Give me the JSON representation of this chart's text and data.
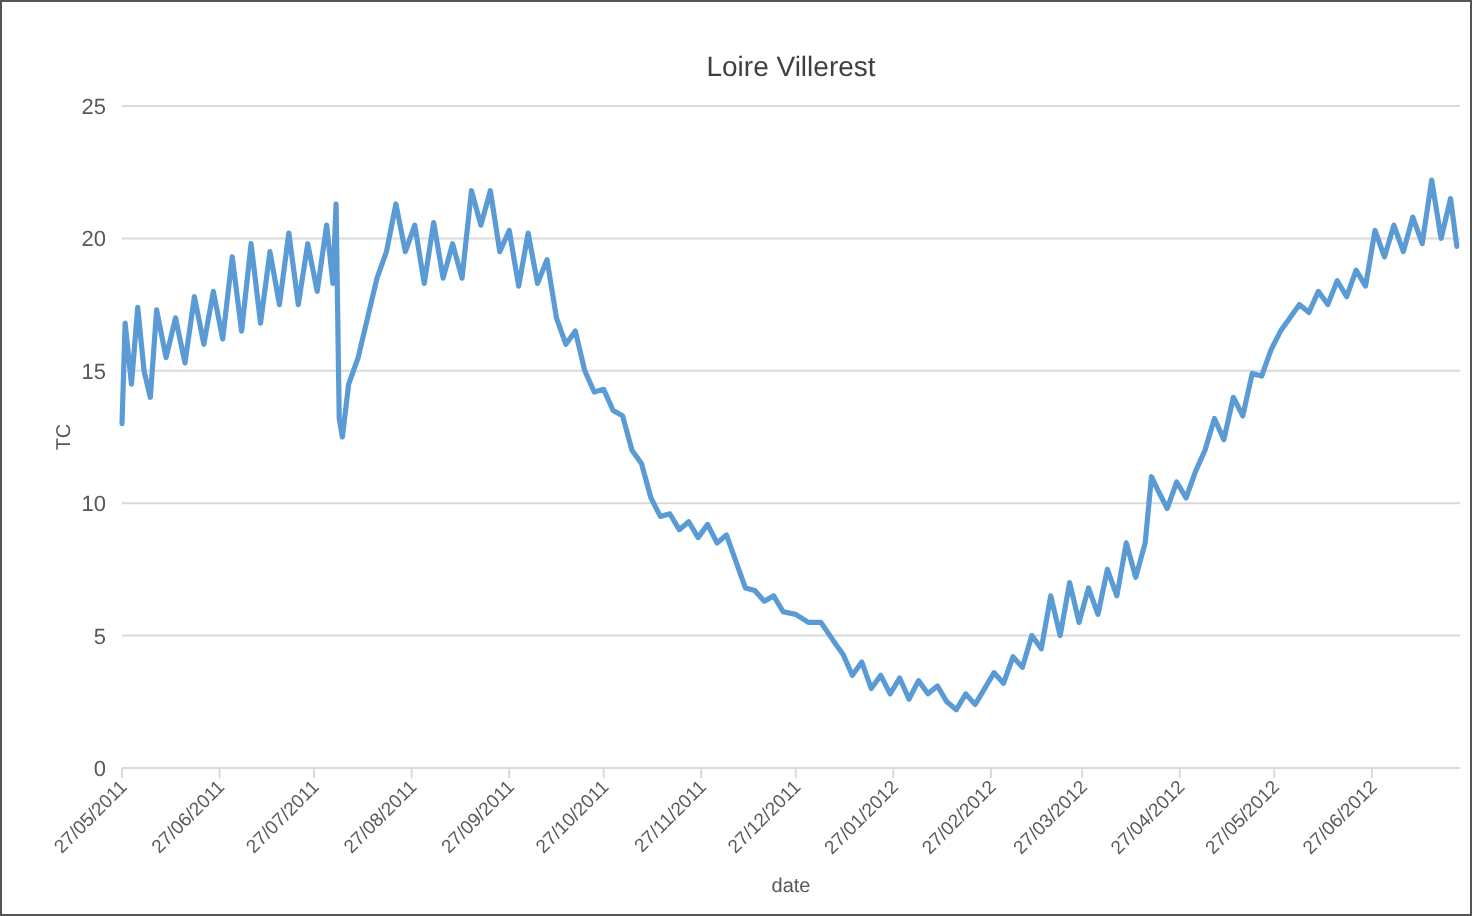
{
  "chart_data": {
    "type": "line",
    "title": "Loire Villerest",
    "xlabel": "date",
    "ylabel": "TC",
    "grid": "y",
    "marker": "none",
    "line_style": "solid",
    "xlim": [
      "2011-05-27",
      "2012-07-25"
    ],
    "xticks": [
      {
        "value": "2011-05-27",
        "label": "27/05/2011"
      },
      {
        "value": "2011-06-27",
        "label": "27/06/2011"
      },
      {
        "value": "2011-07-27",
        "label": "27/07/2011"
      },
      {
        "value": "2011-08-27",
        "label": "27/08/2011"
      },
      {
        "value": "2011-09-27",
        "label": "27/09/2011"
      },
      {
        "value": "2011-10-27",
        "label": "27/10/2011"
      },
      {
        "value": "2011-11-27",
        "label": "27/11/2011"
      },
      {
        "value": "2011-12-27",
        "label": "27/12/2011"
      },
      {
        "value": "2012-01-27",
        "label": "27/01/2012"
      },
      {
        "value": "2012-02-27",
        "label": "27/02/2012"
      },
      {
        "value": "2012-03-27",
        "label": "27/03/2012"
      },
      {
        "value": "2012-04-27",
        "label": "27/04/2012"
      },
      {
        "value": "2012-05-27",
        "label": "27/05/2012"
      },
      {
        "value": "2012-06-27",
        "label": "27/06/2012"
      }
    ],
    "ylim": [
      0,
      25
    ],
    "yticks": [
      0,
      5,
      10,
      15,
      20,
      25
    ],
    "x": [
      "2011-05-27",
      "2011-05-28",
      "2011-05-30",
      "2011-06-01",
      "2011-06-03",
      "2011-06-05",
      "2011-06-07",
      "2011-06-10",
      "2011-06-13",
      "2011-06-16",
      "2011-06-19",
      "2011-06-22",
      "2011-06-25",
      "2011-06-28",
      "2011-07-01",
      "2011-07-04",
      "2011-07-07",
      "2011-07-10",
      "2011-07-13",
      "2011-07-16",
      "2011-07-19",
      "2011-07-22",
      "2011-07-25",
      "2011-07-28",
      "2011-07-31",
      "2011-08-02",
      "2011-08-03",
      "2011-08-04",
      "2011-08-05",
      "2011-08-07",
      "2011-08-10",
      "2011-08-13",
      "2011-08-16",
      "2011-08-19",
      "2011-08-22",
      "2011-08-25",
      "2011-08-28",
      "2011-08-31",
      "2011-09-03",
      "2011-09-06",
      "2011-09-09",
      "2011-09-12",
      "2011-09-15",
      "2011-09-18",
      "2011-09-21",
      "2011-09-24",
      "2011-09-27",
      "2011-09-30",
      "2011-10-03",
      "2011-10-06",
      "2011-10-09",
      "2011-10-12",
      "2011-10-15",
      "2011-10-18",
      "2011-10-21",
      "2011-10-24",
      "2011-10-27",
      "2011-10-30",
      "2011-11-02",
      "2011-11-05",
      "2011-11-08",
      "2011-11-11",
      "2011-11-14",
      "2011-11-17",
      "2011-11-20",
      "2011-11-23",
      "2011-11-26",
      "2011-11-29",
      "2011-12-02",
      "2011-12-05",
      "2011-12-08",
      "2011-12-11",
      "2011-12-14",
      "2011-12-17",
      "2011-12-20",
      "2011-12-23",
      "2011-12-27",
      "2011-12-31",
      "2012-01-04",
      "2012-01-08",
      "2012-01-11",
      "2012-01-14",
      "2012-01-17",
      "2012-01-20",
      "2012-01-23",
      "2012-01-26",
      "2012-01-29",
      "2012-02-01",
      "2012-02-04",
      "2012-02-07",
      "2012-02-10",
      "2012-02-13",
      "2012-02-16",
      "2012-02-19",
      "2012-02-22",
      "2012-02-25",
      "2012-02-28",
      "2012-03-02",
      "2012-03-05",
      "2012-03-08",
      "2012-03-11",
      "2012-03-14",
      "2012-03-17",
      "2012-03-20",
      "2012-03-23",
      "2012-03-26",
      "2012-03-29",
      "2012-04-01",
      "2012-04-04",
      "2012-04-07",
      "2012-04-10",
      "2012-04-13",
      "2012-04-16",
      "2012-04-18",
      "2012-04-20",
      "2012-04-23",
      "2012-04-26",
      "2012-04-29",
      "2012-05-02",
      "2012-05-05",
      "2012-05-08",
      "2012-05-11",
      "2012-05-14",
      "2012-05-17",
      "2012-05-20",
      "2012-05-23",
      "2012-05-26",
      "2012-05-29",
      "2012-06-01",
      "2012-06-04",
      "2012-06-07",
      "2012-06-10",
      "2012-06-13",
      "2012-06-16",
      "2012-06-19",
      "2012-06-22",
      "2012-06-25",
      "2012-06-28",
      "2012-07-01",
      "2012-07-04",
      "2012-07-07",
      "2012-07-10",
      "2012-07-13",
      "2012-07-16",
      "2012-07-19",
      "2012-07-22",
      "2012-07-24"
    ],
    "series": [
      {
        "color": "#5b9bd5",
        "values": [
          13.0,
          16.8,
          14.5,
          17.4,
          15.0,
          14.0,
          17.3,
          15.5,
          17.0,
          15.3,
          17.8,
          16.0,
          18.0,
          16.2,
          19.3,
          16.5,
          19.8,
          16.8,
          19.5,
          17.5,
          20.2,
          17.5,
          19.8,
          18.0,
          20.5,
          18.3,
          21.3,
          13.2,
          12.5,
          14.5,
          15.5,
          17.0,
          18.5,
          19.5,
          21.3,
          19.5,
          20.5,
          18.3,
          20.6,
          18.5,
          19.8,
          18.5,
          21.8,
          20.5,
          21.8,
          19.5,
          20.3,
          18.2,
          20.2,
          18.3,
          19.2,
          17.0,
          16.0,
          16.5,
          15.0,
          14.2,
          14.3,
          13.5,
          13.3,
          12.0,
          11.5,
          10.2,
          9.5,
          9.6,
          9.0,
          9.3,
          8.7,
          9.2,
          8.5,
          8.8,
          7.8,
          6.8,
          6.7,
          6.3,
          6.5,
          5.9,
          5.8,
          5.5,
          5.5,
          4.8,
          4.3,
          3.5,
          4.0,
          3.0,
          3.5,
          2.8,
          3.4,
          2.6,
          3.3,
          2.8,
          3.1,
          2.5,
          2.2,
          2.8,
          2.4,
          3.0,
          3.6,
          3.2,
          4.2,
          3.8,
          5.0,
          4.5,
          6.5,
          5.0,
          7.0,
          5.5,
          6.8,
          5.8,
          7.5,
          6.5,
          8.5,
          7.2,
          8.5,
          11.0,
          10.5,
          9.8,
          10.8,
          10.2,
          11.2,
          12.0,
          13.2,
          12.4,
          14.0,
          13.3,
          14.9,
          14.8,
          15.8,
          16.5,
          17.0,
          17.5,
          17.2,
          18.0,
          17.5,
          18.4,
          17.8,
          18.8,
          18.2,
          20.3,
          19.3,
          20.5,
          19.5,
          20.8,
          19.8,
          22.2,
          20.0,
          21.5,
          19.7
        ]
      }
    ]
  }
}
